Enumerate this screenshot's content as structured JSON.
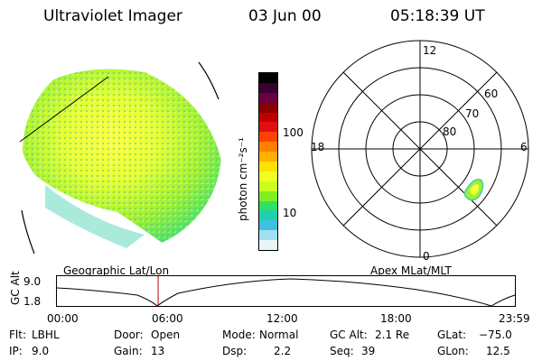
{
  "header": {
    "instrument": "Ultraviolet Imager",
    "date": "03 Jun 00",
    "time": "05:18:39 UT"
  },
  "colorbar": {
    "unit_label": "photon cm⁻²s⁻¹",
    "ticks": [
      "100",
      "10"
    ],
    "colors": [
      "#000000",
      "#3a0030",
      "#6a0040",
      "#8c0000",
      "#c00000",
      "#e01010",
      "#ff4000",
      "#ff8000",
      "#ffb000",
      "#ffe000",
      "#f0ff20",
      "#c8ff20",
      "#80f020",
      "#30e060",
      "#20d0b0",
      "#40c0e0",
      "#a0e0f0",
      "#e8f4f8"
    ]
  },
  "polar_plot": {
    "top_label": "12",
    "left_label": "18",
    "right_label": "6",
    "bottom_label": "0",
    "lat_labels": [
      "60",
      "70",
      "80"
    ]
  },
  "timeline": {
    "left_title": "Geographic Lat/Lon",
    "right_title": "Apex MLat/MLT",
    "axis_title": "GC Alt",
    "y_ticks": [
      "9.0",
      "1.8"
    ],
    "x_ticks": [
      "00:00",
      "06:00",
      "12:00",
      "18:00",
      "23:59"
    ],
    "current_time_fraction": 0.221
  },
  "status": {
    "flt_label": "Flt:",
    "flt_value": "LBHL",
    "ip_label": "IP:",
    "ip_value": "9.0",
    "door_label": "Door:",
    "door_value": "Open",
    "gain_label": "Gain:",
    "gain_value": "13",
    "mode_label": "Mode:",
    "mode_value": "Normal",
    "dsp_label": "Dsp:",
    "dsp_value": "2.2",
    "gcalt_label": "GC Alt:",
    "gcalt_value": "2.1 Re",
    "seq_label": "Seq:",
    "seq_value": "39",
    "glat_label": "GLat:",
    "glat_value": "−75.0",
    "glon_label": "GLon:",
    "glon_value": "12.5"
  }
}
